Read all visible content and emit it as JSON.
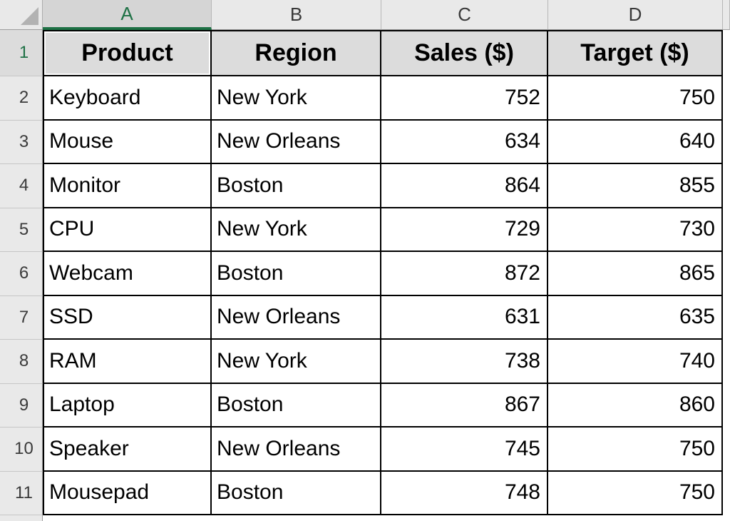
{
  "sheet": {
    "selected_cell": "A1",
    "selected_column": "A",
    "selected_row": "1",
    "column_letters": [
      "A",
      "B",
      "C",
      "D"
    ],
    "row_numbers": [
      "1",
      "2",
      "3",
      "4",
      "5",
      "6",
      "7",
      "8",
      "9",
      "10",
      "11"
    ],
    "header_row": [
      "Product",
      "Region",
      "Sales ($)",
      "Target ($)"
    ],
    "rows": [
      [
        "Keyboard",
        "New York",
        "752",
        "750"
      ],
      [
        "Mouse",
        "New Orleans",
        "634",
        "640"
      ],
      [
        "Monitor",
        "Boston",
        "864",
        "855"
      ],
      [
        "CPU",
        "New York",
        "729",
        "730"
      ],
      [
        "Webcam",
        "Boston",
        "872",
        "865"
      ],
      [
        "SSD",
        "New Orleans",
        "631",
        "635"
      ],
      [
        "RAM",
        "New York",
        "738",
        "740"
      ],
      [
        "Laptop",
        "Boston",
        "867",
        "860"
      ],
      [
        "Speaker",
        "New Orleans",
        "745",
        "750"
      ],
      [
        "Mousepad",
        "Boston",
        "748",
        "750"
      ]
    ],
    "colors": {
      "selection_green": "#1E7145",
      "header_cell_fill": "#DCDCDC",
      "chrome_fill": "#E9E9E9",
      "selected_chrome_fill": "#D5D5D5",
      "grid_line": "#000000"
    }
  }
}
